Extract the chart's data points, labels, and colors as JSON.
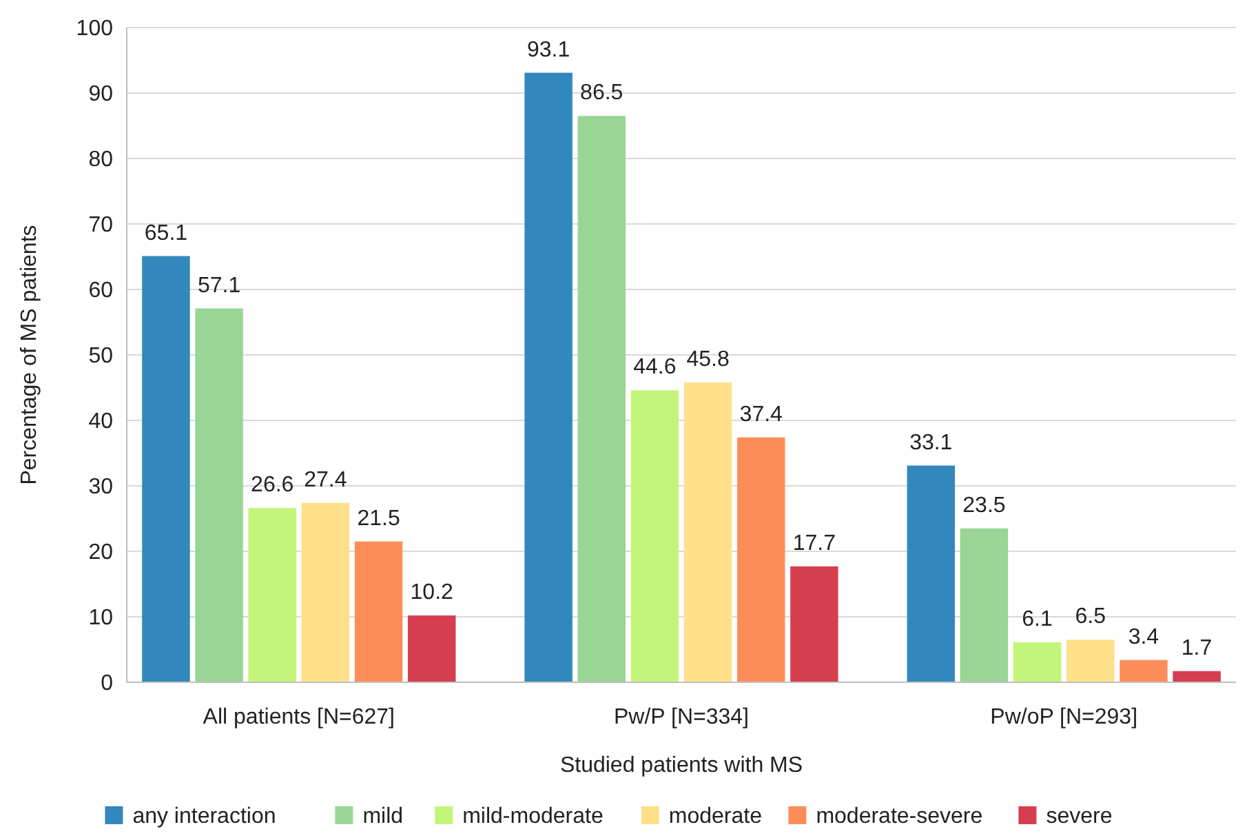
{
  "chart_data": {
    "type": "bar",
    "xlabel": "Studied patients with MS",
    "ylabel": "Percentage of MS patients",
    "categories": [
      "All patients [N=627]",
      "Pw/P [N=334]",
      "Pw/oP [N=293]"
    ],
    "series": [
      {
        "name": "any interaction",
        "color": "#3288bd",
        "values": [
          65.1,
          93.1,
          33.1
        ]
      },
      {
        "name": "mild",
        "color": "#99d594",
        "values": [
          57.1,
          86.5,
          23.5
        ]
      },
      {
        "name": "mild-moderate",
        "color": "#c3f57a",
        "values": [
          26.6,
          44.6,
          6.1
        ]
      },
      {
        "name": "moderate",
        "color": "#fee08b",
        "values": [
          27.4,
          45.8,
          6.5
        ]
      },
      {
        "name": "moderate-severe",
        "color": "#fc8d59",
        "values": [
          21.5,
          37.4,
          3.4
        ]
      },
      {
        "name": "severe",
        "color": "#d53e4f",
        "values": [
          10.2,
          17.7,
          1.7
        ]
      }
    ],
    "ylim": [
      0,
      100
    ],
    "yticks": [
      0,
      10,
      20,
      30,
      40,
      50,
      60,
      70,
      80,
      90,
      100
    ],
    "grid": "y",
    "legend": "bottom",
    "data_labels": true
  }
}
